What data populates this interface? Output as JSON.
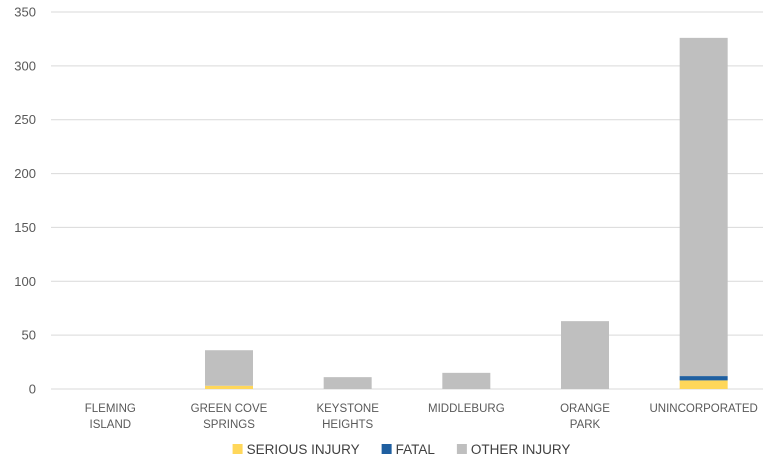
{
  "chart_data": {
    "type": "bar",
    "stacked": true,
    "categories": [
      [
        "FLEMING",
        "ISLAND"
      ],
      [
        "GREEN COVE",
        "SPRINGS"
      ],
      [
        "KEYSTONE",
        "HEIGHTS"
      ],
      [
        "MIDDLEBURG"
      ],
      [
        "ORANGE",
        "PARK"
      ],
      [
        "UNINCORPORATED"
      ]
    ],
    "series": [
      {
        "name": "SERIOUS INJURY",
        "color": "#FFD75A",
        "values": [
          0,
          3,
          0,
          0,
          0,
          8
        ]
      },
      {
        "name": "FATAL",
        "color": "#1F5FA0",
        "values": [
          0,
          0,
          0,
          0,
          0,
          4
        ]
      },
      {
        "name": "OTHER INJURY",
        "color": "#BFBFBF",
        "values": [
          0,
          33,
          11,
          15,
          63,
          314
        ]
      }
    ],
    "ylim": [
      0,
      350
    ],
    "yticks": [
      0,
      50,
      100,
      150,
      200,
      250,
      300,
      350
    ],
    "grid": true,
    "legend": "bottom"
  }
}
